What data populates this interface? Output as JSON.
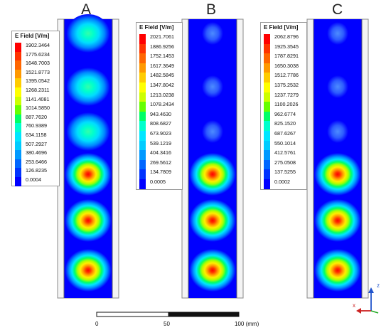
{
  "panels": [
    {
      "label": "A",
      "legend_title": "E Field [V/m]",
      "legend_values": [
        "1902.3464",
        "1775.6234",
        "1648.7003",
        "1521.8773",
        "1395.0542",
        "1268.2311",
        "1141.4081",
        "1014.5850",
        "887.7620",
        "760.9389",
        "634.1158",
        "507.2927",
        "380.4696",
        "253.6466",
        "126.8235",
        "0.0004"
      ],
      "field_levels": [
        0.38,
        0.38,
        0.4,
        1.0,
        1.0,
        1.0
      ]
    },
    {
      "label": "B",
      "legend_title": "E Field [V/m]",
      "legend_values": [
        "2021.7061",
        "1886.9256",
        "1752.1453",
        "1617.3649",
        "1482.5845",
        "1347.8042",
        "1213.0238",
        "1078.2434",
        "943.4630",
        "808.6827",
        "673.9023",
        "539.1219",
        "404.3416",
        "269.5612",
        "134.7809",
        "0.0005"
      ],
      "field_levels": [
        0.05,
        0.05,
        0.05,
        1.0,
        1.0,
        1.0
      ]
    },
    {
      "label": "C",
      "legend_title": "E Field [V/m]",
      "legend_values": [
        "2062.8796",
        "1925.3545",
        "1787.8291",
        "1650.3038",
        "1512.7786",
        "1375.2532",
        "1237.7279",
        "1100.2026",
        "962.6774",
        "825.1520",
        "687.6267",
        "550.1014",
        "412.5761",
        "275.0508",
        "137.5255",
        "0.0002"
      ],
      "field_levels": [
        0.05,
        0.05,
        0.05,
        1.0,
        1.0,
        1.0
      ]
    }
  ],
  "colorscale": [
    "#ff0000",
    "#ff3300",
    "#ff6600",
    "#ff9900",
    "#ffcc00",
    "#ffff00",
    "#ccff00",
    "#66ff00",
    "#00ff66",
    "#00ffcc",
    "#00e6ff",
    "#00ccff",
    "#0099ff",
    "#0066ff",
    "#0033ff",
    "#0000ff"
  ],
  "scale_bar": {
    "ticks": [
      "0",
      "50",
      "100 (mm)"
    ]
  },
  "axes": {
    "z_label": "z",
    "x_label": "x",
    "z_color": "#2255cc",
    "x_color": "#cc2222"
  }
}
